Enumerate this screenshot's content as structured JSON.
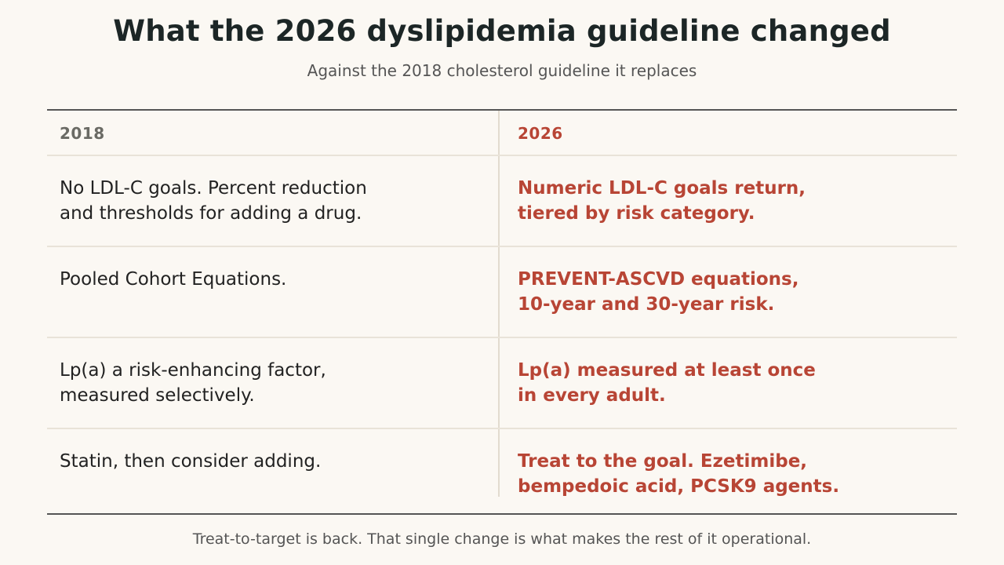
{
  "title": "What the 2026 dyslipidemia guideline changed",
  "subtitle": "Against the 2018 cholesterol guideline it replaces",
  "table": {
    "headers": {
      "old": "2018",
      "new": "2026"
    },
    "rows": [
      {
        "old": "No LDL-C goals. Percent reduction\nand thresholds for adding a drug.",
        "new": "Numeric LDL-C goals return,\ntiered by risk category."
      },
      {
        "old": "Pooled Cohort Equations.",
        "new": "PREVENT-ASCVD equations,\n10-year and 30-year risk."
      },
      {
        "old": "Lp(a) a risk-enhancing factor,\nmeasured selectively.",
        "new": "Lp(a) measured at least once\nin every adult."
      },
      {
        "old": "Statin, then consider adding.",
        "new": "Treat to the goal. Ezetimibe,\nbempedoic acid, PCSK9 agents."
      }
    ]
  },
  "footer": "Treat-to-target is back. That single change is what makes the rest of it operational.",
  "colors": {
    "background": "#fbf8f3",
    "accent": "#b84535",
    "title": "#1c2626",
    "rule": "#555555"
  }
}
